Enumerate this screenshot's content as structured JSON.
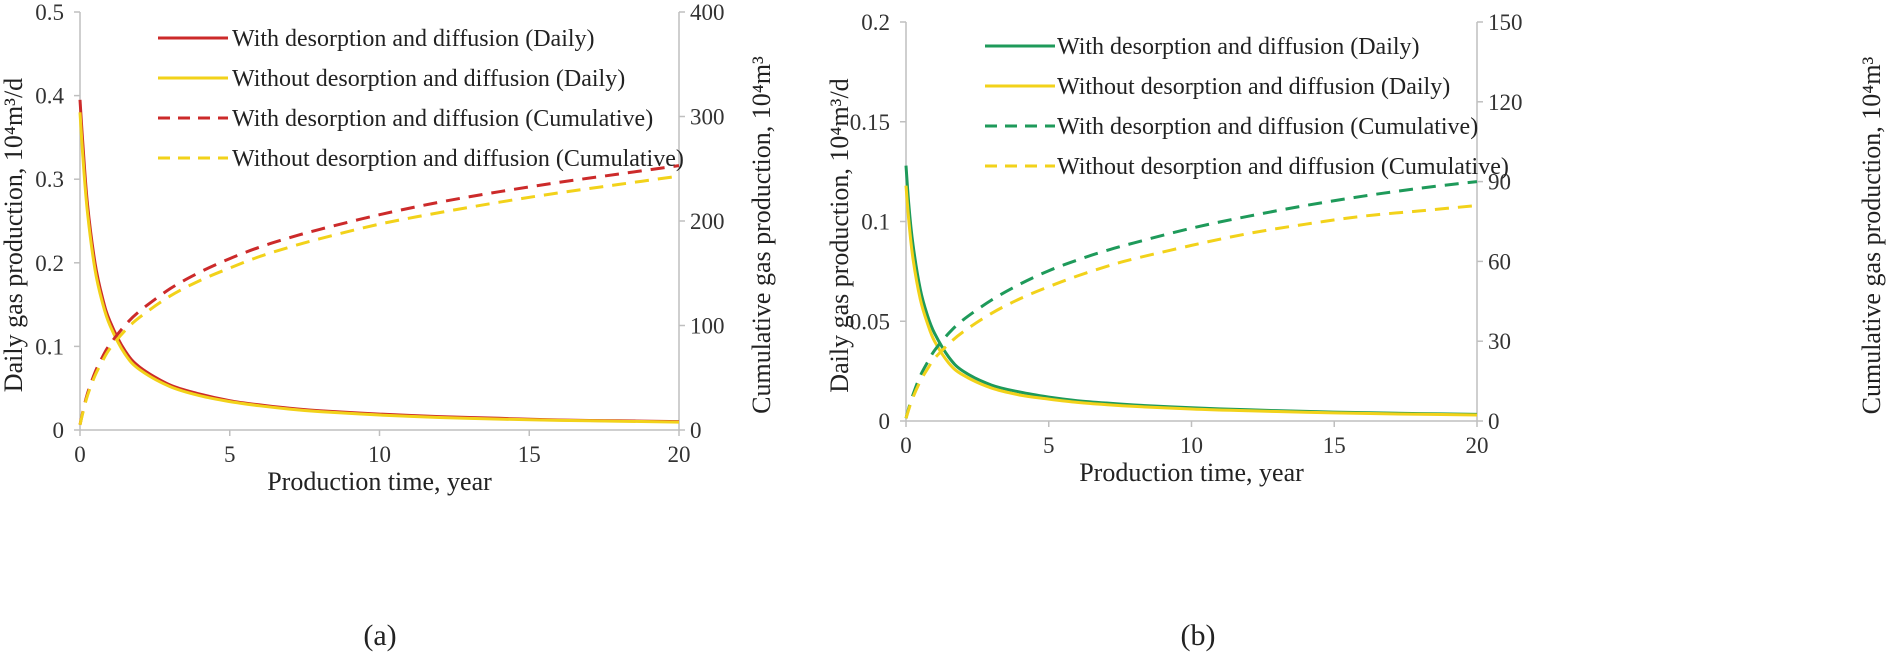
{
  "chart_data": [
    {
      "type": "line",
      "panel_label": "(a)",
      "xlabel": "Production time, year",
      "ylabel": "Daily gas production, 10⁴m³/d",
      "y2label": "Cumulative gas production, 10⁴m³",
      "xlim": [
        0,
        20
      ],
      "ylim": [
        0,
        0.5
      ],
      "y2lim": [
        0,
        400
      ],
      "xticks": [
        0,
        5,
        10,
        15,
        20
      ],
      "yticks": [
        0,
        0.1,
        0.2,
        0.3,
        0.4,
        0.5
      ],
      "yticklabels": [
        "0",
        "0.1",
        "0.2",
        "0.3",
        "0.4",
        "0.5"
      ],
      "y2ticks": [
        0,
        100,
        200,
        300,
        400
      ],
      "legend_position": "top-center",
      "series": [
        {
          "name": "With desorption and diffusion (Daily)",
          "axis": "left",
          "style": "solid",
          "color": "#cc2a2a",
          "x": [
            0,
            0.1,
            0.25,
            0.5,
            0.75,
            1,
            1.5,
            2,
            3,
            4,
            5,
            6,
            7,
            8,
            10,
            12,
            14,
            16,
            18,
            20
          ],
          "values": [
            0.395,
            0.34,
            0.27,
            0.2,
            0.158,
            0.13,
            0.095,
            0.075,
            0.054,
            0.043,
            0.035,
            0.03,
            0.026,
            0.023,
            0.019,
            0.016,
            0.014,
            0.012,
            0.011,
            0.01
          ]
        },
        {
          "name": "Without desorption and diffusion (Daily)",
          "axis": "left",
          "style": "solid",
          "color": "#f2d21a",
          "x": [
            0,
            0.1,
            0.25,
            0.5,
            0.75,
            1,
            1.5,
            2,
            3,
            4,
            5,
            6,
            7,
            8,
            10,
            12,
            14,
            16,
            18,
            20
          ],
          "values": [
            0.38,
            0.325,
            0.26,
            0.192,
            0.152,
            0.125,
            0.091,
            0.072,
            0.052,
            0.041,
            0.034,
            0.029,
            0.025,
            0.022,
            0.018,
            0.015,
            0.013,
            0.0115,
            0.0105,
            0.0095
          ]
        },
        {
          "name": "With desorption and diffusion (Cumulative)",
          "axis": "right",
          "style": "dashed",
          "color": "#cc2a2a",
          "x": [
            0,
            0.1,
            0.25,
            0.5,
            0.75,
            1,
            1.5,
            2,
            3,
            4,
            5,
            6,
            7,
            8,
            10,
            12,
            14,
            16,
            18,
            20
          ],
          "values": [
            5,
            18,
            35,
            55,
            70,
            82,
            100,
            114,
            135,
            151,
            164,
            175,
            184,
            192,
            206,
            218,
            228,
            237,
            245,
            253
          ]
        },
        {
          "name": "Without desorption and diffusion (Cumulative)",
          "axis": "right",
          "style": "dashed",
          "color": "#f2d21a",
          "x": [
            0,
            0.1,
            0.25,
            0.5,
            0.75,
            1,
            1.5,
            2,
            3,
            4,
            5,
            6,
            7,
            8,
            10,
            12,
            14,
            16,
            18,
            20
          ],
          "values": [
            5,
            17,
            33,
            52,
            66,
            78,
            95,
            108,
            128,
            143,
            155,
            166,
            175,
            183,
            197,
            208,
            218,
            227,
            235,
            243
          ]
        }
      ]
    },
    {
      "type": "line",
      "panel_label": "(b)",
      "xlabel": "Production time, year",
      "ylabel": "Daily gas production, 10⁴m³/d",
      "y2label": "Cumulative gas production, 10⁴m³",
      "xlim": [
        0,
        20
      ],
      "ylim": [
        0,
        0.2
      ],
      "y2lim": [
        0,
        150
      ],
      "xticks": [
        0,
        5,
        10,
        15,
        20
      ],
      "yticks": [
        0,
        0.05,
        0.1,
        0.15,
        0.2
      ],
      "yticklabels": [
        "0",
        "0.05",
        "0.1",
        "0.15",
        "0.2"
      ],
      "y2ticks": [
        0,
        30,
        60,
        90,
        120,
        150
      ],
      "legend_position": "top-center",
      "series": [
        {
          "name": "With desorption and diffusion (Daily)",
          "axis": "left",
          "style": "solid",
          "color": "#1e9a5a",
          "x": [
            0,
            0.1,
            0.25,
            0.5,
            0.75,
            1,
            1.5,
            2,
            3,
            4,
            5,
            6,
            7,
            8,
            10,
            12,
            14,
            16,
            18,
            20
          ],
          "values": [
            0.128,
            0.108,
            0.088,
            0.066,
            0.053,
            0.044,
            0.032,
            0.025,
            0.018,
            0.0145,
            0.012,
            0.0102,
            0.009,
            0.008,
            0.0066,
            0.0056,
            0.0048,
            0.0042,
            0.0037,
            0.0033
          ]
        },
        {
          "name": "Without desorption and diffusion (Daily)",
          "axis": "left",
          "style": "solid",
          "color": "#f2d21a",
          "x": [
            0,
            0.1,
            0.25,
            0.5,
            0.75,
            1,
            1.5,
            2,
            3,
            4,
            5,
            6,
            7,
            8,
            10,
            12,
            14,
            16,
            18,
            20
          ],
          "values": [
            0.118,
            0.1,
            0.081,
            0.061,
            0.049,
            0.04,
            0.029,
            0.023,
            0.0165,
            0.013,
            0.011,
            0.0093,
            0.0082,
            0.0073,
            0.006,
            0.0051,
            0.0044,
            0.0038,
            0.0034,
            0.003
          ]
        },
        {
          "name": "With desorption and diffusion (Cumulative)",
          "axis": "right",
          "style": "dashed",
          "color": "#1e9a5a",
          "x": [
            0,
            0.1,
            0.25,
            0.5,
            0.75,
            1,
            1.5,
            2,
            3,
            4,
            5,
            6,
            7,
            8,
            10,
            12,
            14,
            16,
            18,
            20
          ],
          "values": [
            1,
            5,
            10,
            17,
            22,
            26.5,
            33,
            38,
            45.5,
            51.5,
            56.5,
            60.5,
            64,
            67,
            72.5,
            77,
            81,
            84.5,
            87.5,
            90
          ]
        },
        {
          "name": "Without desorption and diffusion (Cumulative)",
          "axis": "right",
          "style": "dashed",
          "color": "#f2d21a",
          "x": [
            0,
            0.1,
            0.25,
            0.5,
            0.75,
            1,
            1.5,
            2,
            3,
            4,
            5,
            6,
            7,
            8,
            10,
            12,
            14,
            16,
            18,
            20
          ],
          "values": [
            1,
            4.5,
            9,
            15,
            19.5,
            23.5,
            29,
            33.5,
            40.5,
            46,
            50.5,
            54.5,
            58,
            61,
            66,
            70.5,
            74,
            77,
            79,
            81
          ]
        }
      ]
    }
  ]
}
